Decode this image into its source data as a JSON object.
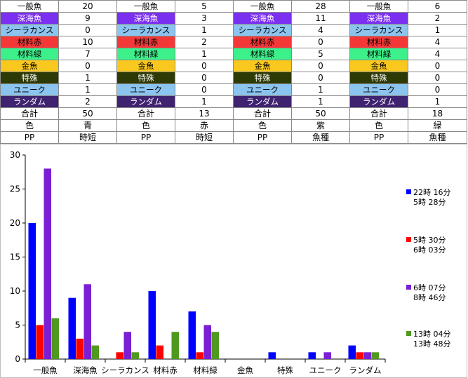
{
  "sheet": {
    "row_labels": [
      "一般魚",
      "深海魚",
      "シーラカンス",
      "材料赤",
      "材料緑",
      "金魚",
      "特殊",
      "ユニーク",
      "ランダム"
    ],
    "label_colors": [
      {
        "bg": "#ffffff",
        "fg": "#000000"
      },
      {
        "bg": "#7b2ff0",
        "fg": "#ffffff"
      },
      {
        "bg": "#8cc4f0",
        "fg": "#000000"
      },
      {
        "bg": "#f43838",
        "fg": "#000000"
      },
      {
        "bg": "#3cf08a",
        "fg": "#000000"
      },
      {
        "bg": "#f8c81e",
        "fg": "#000000"
      },
      {
        "bg": "#2e3a06",
        "fg": "#ffffff"
      },
      {
        "bg": "#8cc4f0",
        "fg": "#000000"
      },
      {
        "bg": "#3f2270",
        "fg": "#ffffff"
      }
    ],
    "total_label": "合計",
    "color_label": "色",
    "pp_label": "PP",
    "groups": [
      {
        "values": [
          "20",
          "9",
          "0",
          "10",
          "7",
          "0",
          "1",
          "1",
          "2"
        ],
        "total": "50",
        "color": "青",
        "pp": "時短"
      },
      {
        "values": [
          "5",
          "3",
          "1",
          "2",
          "1",
          "0",
          "0",
          "0",
          "1"
        ],
        "total": "13",
        "color": "赤",
        "pp": "時短"
      },
      {
        "values": [
          "28",
          "11",
          "4",
          "0",
          "5",
          "0",
          "0",
          "1",
          "1"
        ],
        "total": "50",
        "color": "紫",
        "pp": "魚種"
      },
      {
        "values": [
          "6",
          "2",
          "1",
          "4",
          "4",
          "0",
          "0",
          "0",
          "1"
        ],
        "total": "18",
        "color": "緑",
        "pp": "魚種"
      }
    ]
  },
  "chart_data": {
    "type": "bar",
    "categories": [
      "一般魚",
      "深海魚",
      "シーラカンス",
      "材料赤",
      "材料緑",
      "金魚",
      "特殊",
      "ユニーク",
      "ランダム"
    ],
    "series": [
      {
        "name": "22時 16分\n5時 28分",
        "color": "#0000ff",
        "values": [
          20,
          9,
          0,
          10,
          7,
          0,
          1,
          1,
          2
        ]
      },
      {
        "name": "5時 30分\n6時 03分",
        "color": "#ff0000",
        "values": [
          5,
          3,
          1,
          2,
          1,
          0,
          0,
          0,
          1
        ]
      },
      {
        "name": "6時 07分\n8時 46分",
        "color": "#7b1fd4",
        "values": [
          28,
          11,
          4,
          0,
          5,
          0,
          0,
          1,
          1
        ]
      },
      {
        "name": "13時 04分\n13時 48分",
        "color": "#4f9a1e",
        "values": [
          6,
          2,
          1,
          4,
          4,
          0,
          0,
          0,
          1
        ]
      }
    ],
    "yticks": [
      "0",
      "5",
      "10",
      "15",
      "20",
      "25",
      "30"
    ],
    "ylim": [
      0,
      30
    ],
    "grid": false,
    "legend": "right",
    "title": "",
    "xlabel": "",
    "ylabel": ""
  }
}
